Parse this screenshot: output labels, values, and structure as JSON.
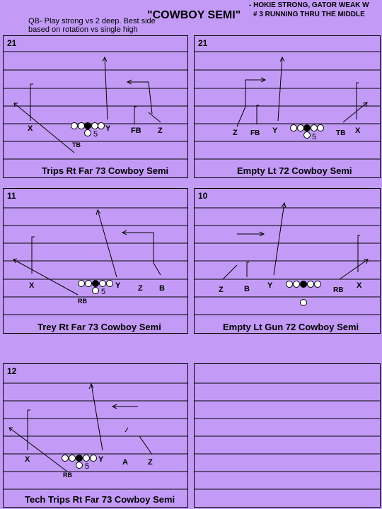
{
  "header": {
    "title": "\"COWBOY SEMI\"",
    "note_line1": "- HOKIE STRONG, GATOR WEAK W",
    "note_line2": "# 3 RUNNING THRU THE MIDDLE",
    "qb_line1": "QB- Play strong vs 2 deep.  Best side",
    "qb_line2": "based on rotation vs single high"
  },
  "plays": [
    {
      "number": "21",
      "title": "Trips Rt Far 73 Cowboy Semi",
      "labels": [
        "X",
        "5",
        "Y",
        "FB",
        "Z",
        "TB"
      ]
    },
    {
      "number": "21",
      "title": "Empty Lt 72 Cowboy Semi",
      "labels": [
        "Z",
        "FB",
        "Y",
        "5",
        "TB",
        "X"
      ]
    },
    {
      "number": "11",
      "title": "Trey Rt Far 73 Cowboy Semi",
      "labels": [
        "X",
        "5",
        "Y",
        "Z",
        "B",
        "RB"
      ]
    },
    {
      "number": "10",
      "title": "Empty Lt Gun 72 Cowboy Semi",
      "labels": [
        "Z",
        "B",
        "Y",
        "RB",
        "X"
      ]
    },
    {
      "number": "12",
      "title": "Tech Trips Rt Far 73 Cowboy Semi",
      "labels": [
        "X",
        "5",
        "Y",
        "A",
        "Z",
        "RB"
      ]
    },
    {
      "number": "",
      "title": "",
      "labels": []
    }
  ]
}
